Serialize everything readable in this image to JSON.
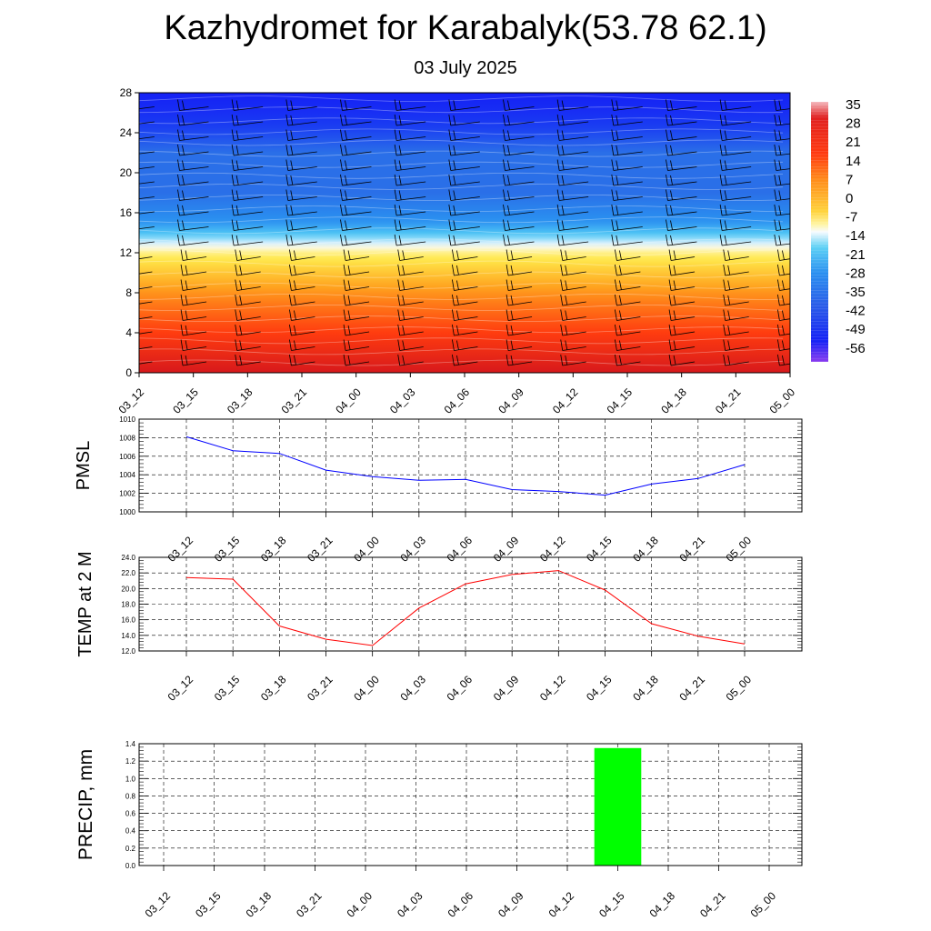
{
  "page": {
    "title": "Kazhydromet for Karabalyk(53.78 62.1)",
    "date": "03 July 2025"
  },
  "chart_data": [
    {
      "type": "heatmap",
      "title": "",
      "times": [
        "03_12",
        "03_15",
        "03_18",
        "03_21",
        "04_00",
        "04_03",
        "04_06",
        "04_09",
        "04_12",
        "04_15",
        "04_18",
        "04_21",
        "05_00"
      ],
      "yticks": [
        0,
        4,
        8,
        12,
        16,
        20,
        24,
        28
      ],
      "ylim": [
        0,
        28
      ],
      "colorbar": {
        "labels": [
          "35",
          "28",
          "21",
          "14",
          "7",
          "0",
          "-7",
          "-14",
          "-21",
          "-28",
          "-35",
          "-42",
          "-49",
          "-56"
        ],
        "colors": {
          "top": "#f4b8bd",
          "warm_high": "#d7191c",
          "warm": "#ff3c0f",
          "orange": "#ff9a1e",
          "yellow": "#ffe84a",
          "pale": "#fff8c8",
          "white": "#f2f7ff",
          "cyan": "#52c9f5",
          "blue": "#2a6fe8",
          "deep": "#1521f5",
          "purple": "#8a3cf0"
        }
      },
      "temperature_profile": [
        {
          "level": 0,
          "temp": 22
        },
        {
          "level": 4,
          "temp": 16
        },
        {
          "level": 8,
          "temp": 5
        },
        {
          "level": 12,
          "temp": -8
        },
        {
          "level": 13,
          "temp": -15
        },
        {
          "level": 15,
          "temp": -25
        },
        {
          "level": 18,
          "temp": -35
        },
        {
          "level": 22,
          "temp": -40
        },
        {
          "level": 26,
          "temp": -52
        },
        {
          "level": 28,
          "temp": -56
        }
      ],
      "wind_barbs": true
    },
    {
      "type": "line",
      "ylabel": "PMSL",
      "x": [
        "03_12",
        "03_15",
        "03_18",
        "03_21",
        "04_00",
        "04_03",
        "04_06",
        "04_09",
        "04_12",
        "04_15",
        "04_18",
        "04_21",
        "05_00"
      ],
      "series": [
        {
          "values": [
            1008.1,
            1006.6,
            1006.3,
            1004.5,
            1003.8,
            1003.4,
            1003.5,
            1002.4,
            1002.2,
            1001.8,
            1003.0,
            1003.6,
            1005.1
          ],
          "color": "#0000ff"
        }
      ],
      "ylim": [
        1000,
        1010
      ],
      "ytick_labels": [
        "1000",
        "1002",
        "1004",
        "1006",
        "1008",
        "1010"
      ],
      "grid": true
    },
    {
      "type": "line",
      "ylabel": "TEMP at 2 M",
      "x": [
        "03_12",
        "03_15",
        "03_18",
        "03_21",
        "04_00",
        "04_03",
        "04_06",
        "04_09",
        "04_12",
        "04_15",
        "04_18",
        "04_21",
        "05_00"
      ],
      "series": [
        {
          "values": [
            21.4,
            21.2,
            15.2,
            13.5,
            12.7,
            17.5,
            20.6,
            21.8,
            22.3,
            19.8,
            15.5,
            13.9,
            12.9
          ],
          "color": "#ff0000"
        }
      ],
      "ylim": [
        12,
        24
      ],
      "ytick_labels": [
        "12.0",
        "14.0",
        "16.0",
        "18.0",
        "20.0",
        "22.0",
        "24.0"
      ],
      "grid": true
    },
    {
      "type": "bar",
      "ylabel": "PRECIP, mm",
      "categories": [
        "03_12",
        "03_15",
        "03_18",
        "03_21",
        "04_00",
        "04_03",
        "04_06",
        "04_09",
        "04_12",
        "04_15",
        "04_18",
        "04_21",
        "05_00"
      ],
      "values": [
        0,
        0,
        0,
        0,
        0,
        0,
        0,
        0,
        0,
        1.35,
        0,
        0,
        0
      ],
      "color": "#00ff00",
      "ylim": [
        0,
        1.4
      ],
      "ytick_labels": [
        "0.0",
        "0.2",
        "0.4",
        "0.6",
        "0.8",
        "1.0",
        "1.2",
        "1.4"
      ],
      "grid": true
    }
  ]
}
